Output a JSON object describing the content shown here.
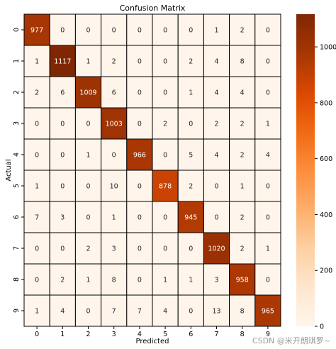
{
  "chart_data": {
    "type": "heatmap",
    "title": "Confusion Matrix",
    "xlabel": "Predicted",
    "ylabel": "Actual",
    "x_categories": [
      "0",
      "1",
      "2",
      "3",
      "4",
      "5",
      "6",
      "7",
      "8",
      "9"
    ],
    "y_categories": [
      "0",
      "1",
      "2",
      "3",
      "4",
      "5",
      "6",
      "7",
      "8",
      "9"
    ],
    "values": [
      [
        977,
        0,
        0,
        0,
        0,
        0,
        0,
        1,
        2,
        0
      ],
      [
        1,
        1117,
        1,
        2,
        0,
        0,
        2,
        4,
        8,
        0
      ],
      [
        2,
        6,
        1009,
        6,
        0,
        0,
        1,
        4,
        4,
        0
      ],
      [
        0,
        0,
        0,
        1003,
        0,
        2,
        0,
        2,
        2,
        1
      ],
      [
        0,
        0,
        1,
        0,
        966,
        0,
        5,
        4,
        2,
        4
      ],
      [
        1,
        0,
        0,
        10,
        0,
        878,
        2,
        0,
        1,
        0
      ],
      [
        7,
        3,
        0,
        1,
        0,
        0,
        945,
        0,
        2,
        0
      ],
      [
        0,
        0,
        2,
        3,
        0,
        0,
        0,
        1020,
        2,
        1
      ],
      [
        0,
        2,
        1,
        8,
        0,
        1,
        1,
        3,
        958,
        0
      ],
      [
        1,
        4,
        0,
        7,
        7,
        4,
        0,
        13,
        8,
        965
      ]
    ],
    "colormap": "Oranges",
    "color_range": [
      0,
      1117
    ],
    "colorbar_ticks": [
      0,
      200,
      400,
      600,
      800,
      1000
    ],
    "grid": true
  },
  "watermark": "CSDN @米开朗琪罗~"
}
